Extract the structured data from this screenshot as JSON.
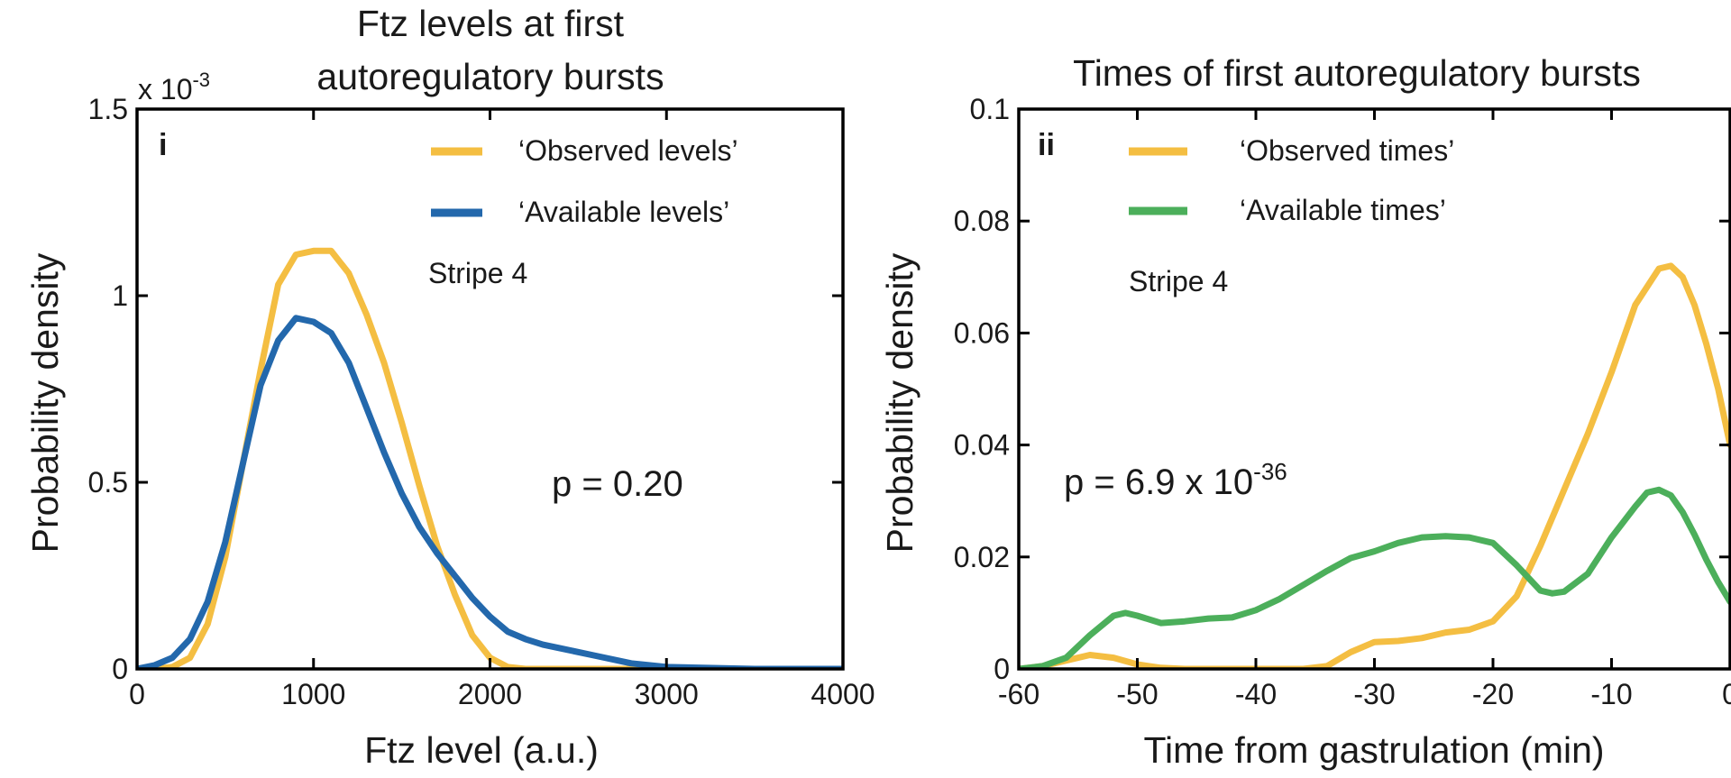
{
  "colors": {
    "observed": "#F4BE42",
    "available_levels": "#2368AC",
    "available_times": "#4CAF5B"
  },
  "chart_data": [
    {
      "type": "line",
      "panel_label": "i",
      "title_line1": "Ftz levels at first",
      "title_line2": "autoregulatory bursts",
      "xlabel": "Ftz level (a.u.)",
      "ylabel": "Probability density",
      "y_multiplier_base": "x 10",
      "y_multiplier_exp": "-3",
      "xlim": [
        0,
        4000
      ],
      "ylim": [
        0,
        1.5
      ],
      "xticks": [
        0,
        1000,
        2000,
        3000,
        4000
      ],
      "xtick_labels": [
        "0",
        "1000",
        "2000",
        "3000",
        "4000"
      ],
      "yticks": [
        0,
        0.5,
        1,
        1.5
      ],
      "ytick_labels": [
        "0",
        "0.5",
        "1",
        "1.5"
      ],
      "grid": false,
      "legend_position": "top-right",
      "annotation": "Stripe 4",
      "pvalue": {
        "text": "p = 0.20",
        "exponent": ""
      },
      "series": [
        {
          "name": "‘Observed levels’",
          "color_key": "observed",
          "x": [
            0,
            100,
            200,
            300,
            400,
            500,
            600,
            700,
            800,
            900,
            1000,
            1100,
            1200,
            1300,
            1400,
            1500,
            1600,
            1700,
            1800,
            1900,
            2000,
            2100,
            2200,
            2400,
            2600,
            3000,
            4000
          ],
          "y": [
            0,
            0,
            0.005,
            0.03,
            0.12,
            0.3,
            0.55,
            0.8,
            1.03,
            1.11,
            1.12,
            1.12,
            1.06,
            0.95,
            0.82,
            0.66,
            0.49,
            0.33,
            0.2,
            0.09,
            0.03,
            0.005,
            0,
            0,
            0,
            0,
            0
          ]
        },
        {
          "name": "‘Available levels’",
          "color_key": "available_levels",
          "x": [
            0,
            100,
            200,
            300,
            400,
            500,
            600,
            700,
            800,
            900,
            1000,
            1100,
            1200,
            1300,
            1400,
            1500,
            1600,
            1700,
            1800,
            1900,
            2000,
            2100,
            2200,
            2300,
            2400,
            2600,
            2800,
            3000,
            3500,
            4000
          ],
          "y": [
            0,
            0.01,
            0.03,
            0.08,
            0.18,
            0.34,
            0.55,
            0.76,
            0.88,
            0.94,
            0.93,
            0.9,
            0.82,
            0.7,
            0.58,
            0.47,
            0.38,
            0.31,
            0.25,
            0.19,
            0.14,
            0.1,
            0.08,
            0.065,
            0.055,
            0.035,
            0.015,
            0.005,
            0,
            0
          ]
        }
      ]
    },
    {
      "type": "line",
      "panel_label": "ii",
      "title_line1": "Times of first autoregulatory bursts",
      "title_line2": "",
      "xlabel": "Time from gastrulation (min)",
      "ylabel": "Probability density",
      "xlim": [
        -60,
        0
      ],
      "ylim": [
        0,
        0.1
      ],
      "xticks": [
        -60,
        -50,
        -40,
        -30,
        -20,
        -10,
        0
      ],
      "xtick_labels": [
        "-60",
        "-50",
        "-40",
        "-30",
        "-20",
        "-10",
        "0"
      ],
      "yticks": [
        0,
        0.02,
        0.04,
        0.06,
        0.08,
        0.1
      ],
      "ytick_labels": [
        "0",
        "0.02",
        "0.04",
        "0.06",
        "0.08",
        "0.1"
      ],
      "grid": false,
      "legend_position": "top-left",
      "annotation": "Stripe 4",
      "pvalue": {
        "text": "p = 6.9 x 10",
        "exponent": "-36"
      },
      "series": [
        {
          "name": "‘Observed times’",
          "color_key": "observed",
          "x": [
            -60,
            -58,
            -56,
            -54,
            -52,
            -50,
            -48,
            -46,
            -44,
            -40,
            -36,
            -34,
            -32,
            -30,
            -28,
            -26,
            -24,
            -22,
            -20,
            -18,
            -16,
            -14,
            -12,
            -10,
            -8,
            -6,
            -5,
            -4,
            -3,
            -2,
            -1,
            0
          ],
          "y": [
            0,
            0.0005,
            0.0015,
            0.0025,
            0.002,
            0.0008,
            0.0002,
            0,
            0,
            0,
            0,
            0.0005,
            0.003,
            0.0048,
            0.005,
            0.0055,
            0.0065,
            0.007,
            0.0085,
            0.013,
            0.022,
            0.032,
            0.042,
            0.053,
            0.065,
            0.0715,
            0.072,
            0.07,
            0.065,
            0.058,
            0.05,
            0.04
          ]
        },
        {
          "name": "‘Available times’",
          "color_key": "available_times",
          "x": [
            -60,
            -58,
            -56,
            -54,
            -52,
            -51,
            -50,
            -48,
            -46,
            -44,
            -42,
            -40,
            -38,
            -36,
            -34,
            -32,
            -30,
            -28,
            -26,
            -24,
            -22,
            -20,
            -18,
            -16,
            -15,
            -14,
            -12,
            -10,
            -8,
            -7,
            -6,
            -5,
            -4,
            -3,
            -2,
            -1,
            0
          ],
          "y": [
            0,
            0.0005,
            0.002,
            0.006,
            0.0095,
            0.01,
            0.0095,
            0.0082,
            0.0085,
            0.009,
            0.0092,
            0.0105,
            0.0125,
            0.015,
            0.0175,
            0.0198,
            0.021,
            0.0225,
            0.0235,
            0.0237,
            0.0235,
            0.0225,
            0.0185,
            0.014,
            0.0135,
            0.0138,
            0.017,
            0.0235,
            0.029,
            0.0315,
            0.032,
            0.031,
            0.028,
            0.024,
            0.0195,
            0.0155,
            0.012
          ]
        }
      ]
    }
  ]
}
